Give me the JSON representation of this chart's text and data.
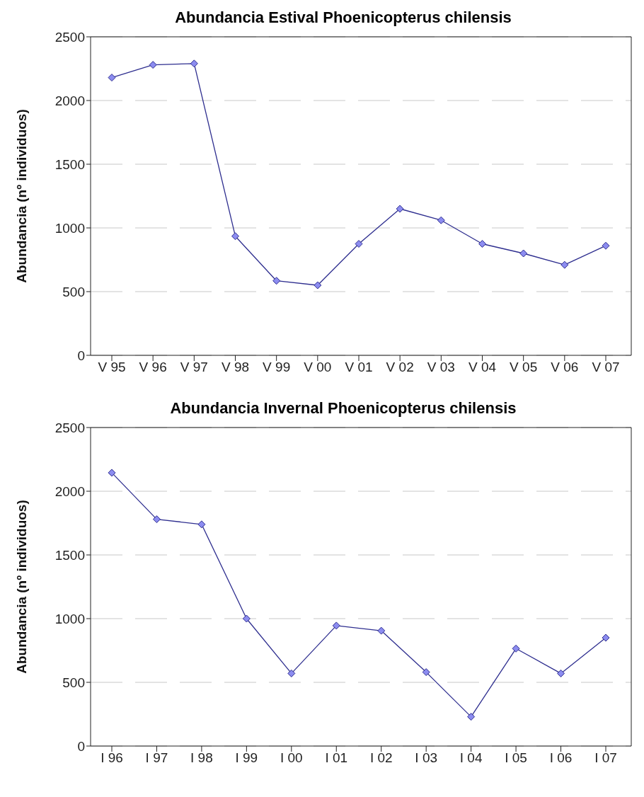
{
  "chart_data": [
    {
      "type": "line",
      "title": "Abundancia Estival Phoenicopterus chilensis",
      "ylabel": "Abundancia (nº individuos)",
      "categories": [
        "V 95",
        "V 96",
        "V 97",
        "V 98",
        "V 99",
        "V 00",
        "V 01",
        "V 02",
        "V 03",
        "V 04",
        "V 05",
        "V 06",
        "V 07"
      ],
      "series": [
        {
          "color": "#2e2e8f",
          "values": [
            2180,
            2280,
            2290,
            935,
            585,
            550,
            875,
            1150,
            1060,
            875,
            800,
            710,
            860
          ]
        }
      ],
      "ylim": [
        0,
        2500
      ],
      "yticks": [
        0,
        500,
        1000,
        1500,
        2000,
        2500
      ],
      "grid": "y",
      "marker": "diamond",
      "line_style": "solid",
      "legend": false
    },
    {
      "type": "line",
      "title": "Abundancia Invernal Phoenicopterus chilensis",
      "ylabel": "Abundancia (nº individuos)",
      "categories": [
        "I 96",
        "I 97",
        "I 98",
        "I 99",
        "I 00",
        "I 01",
        "I 02",
        "I 03",
        "I 04",
        "I 05",
        "I 06",
        "I 07"
      ],
      "series": [
        {
          "color": "#2e2e8f",
          "values": [
            2145,
            1780,
            1740,
            1000,
            570,
            945,
            905,
            580,
            230,
            765,
            570,
            850
          ]
        }
      ],
      "ylim": [
        0,
        2500
      ],
      "yticks": [
        0,
        500,
        1000,
        1500,
        2000,
        2500
      ],
      "grid": "y",
      "marker": "diamond",
      "line_style": "solid",
      "legend": false
    }
  ]
}
